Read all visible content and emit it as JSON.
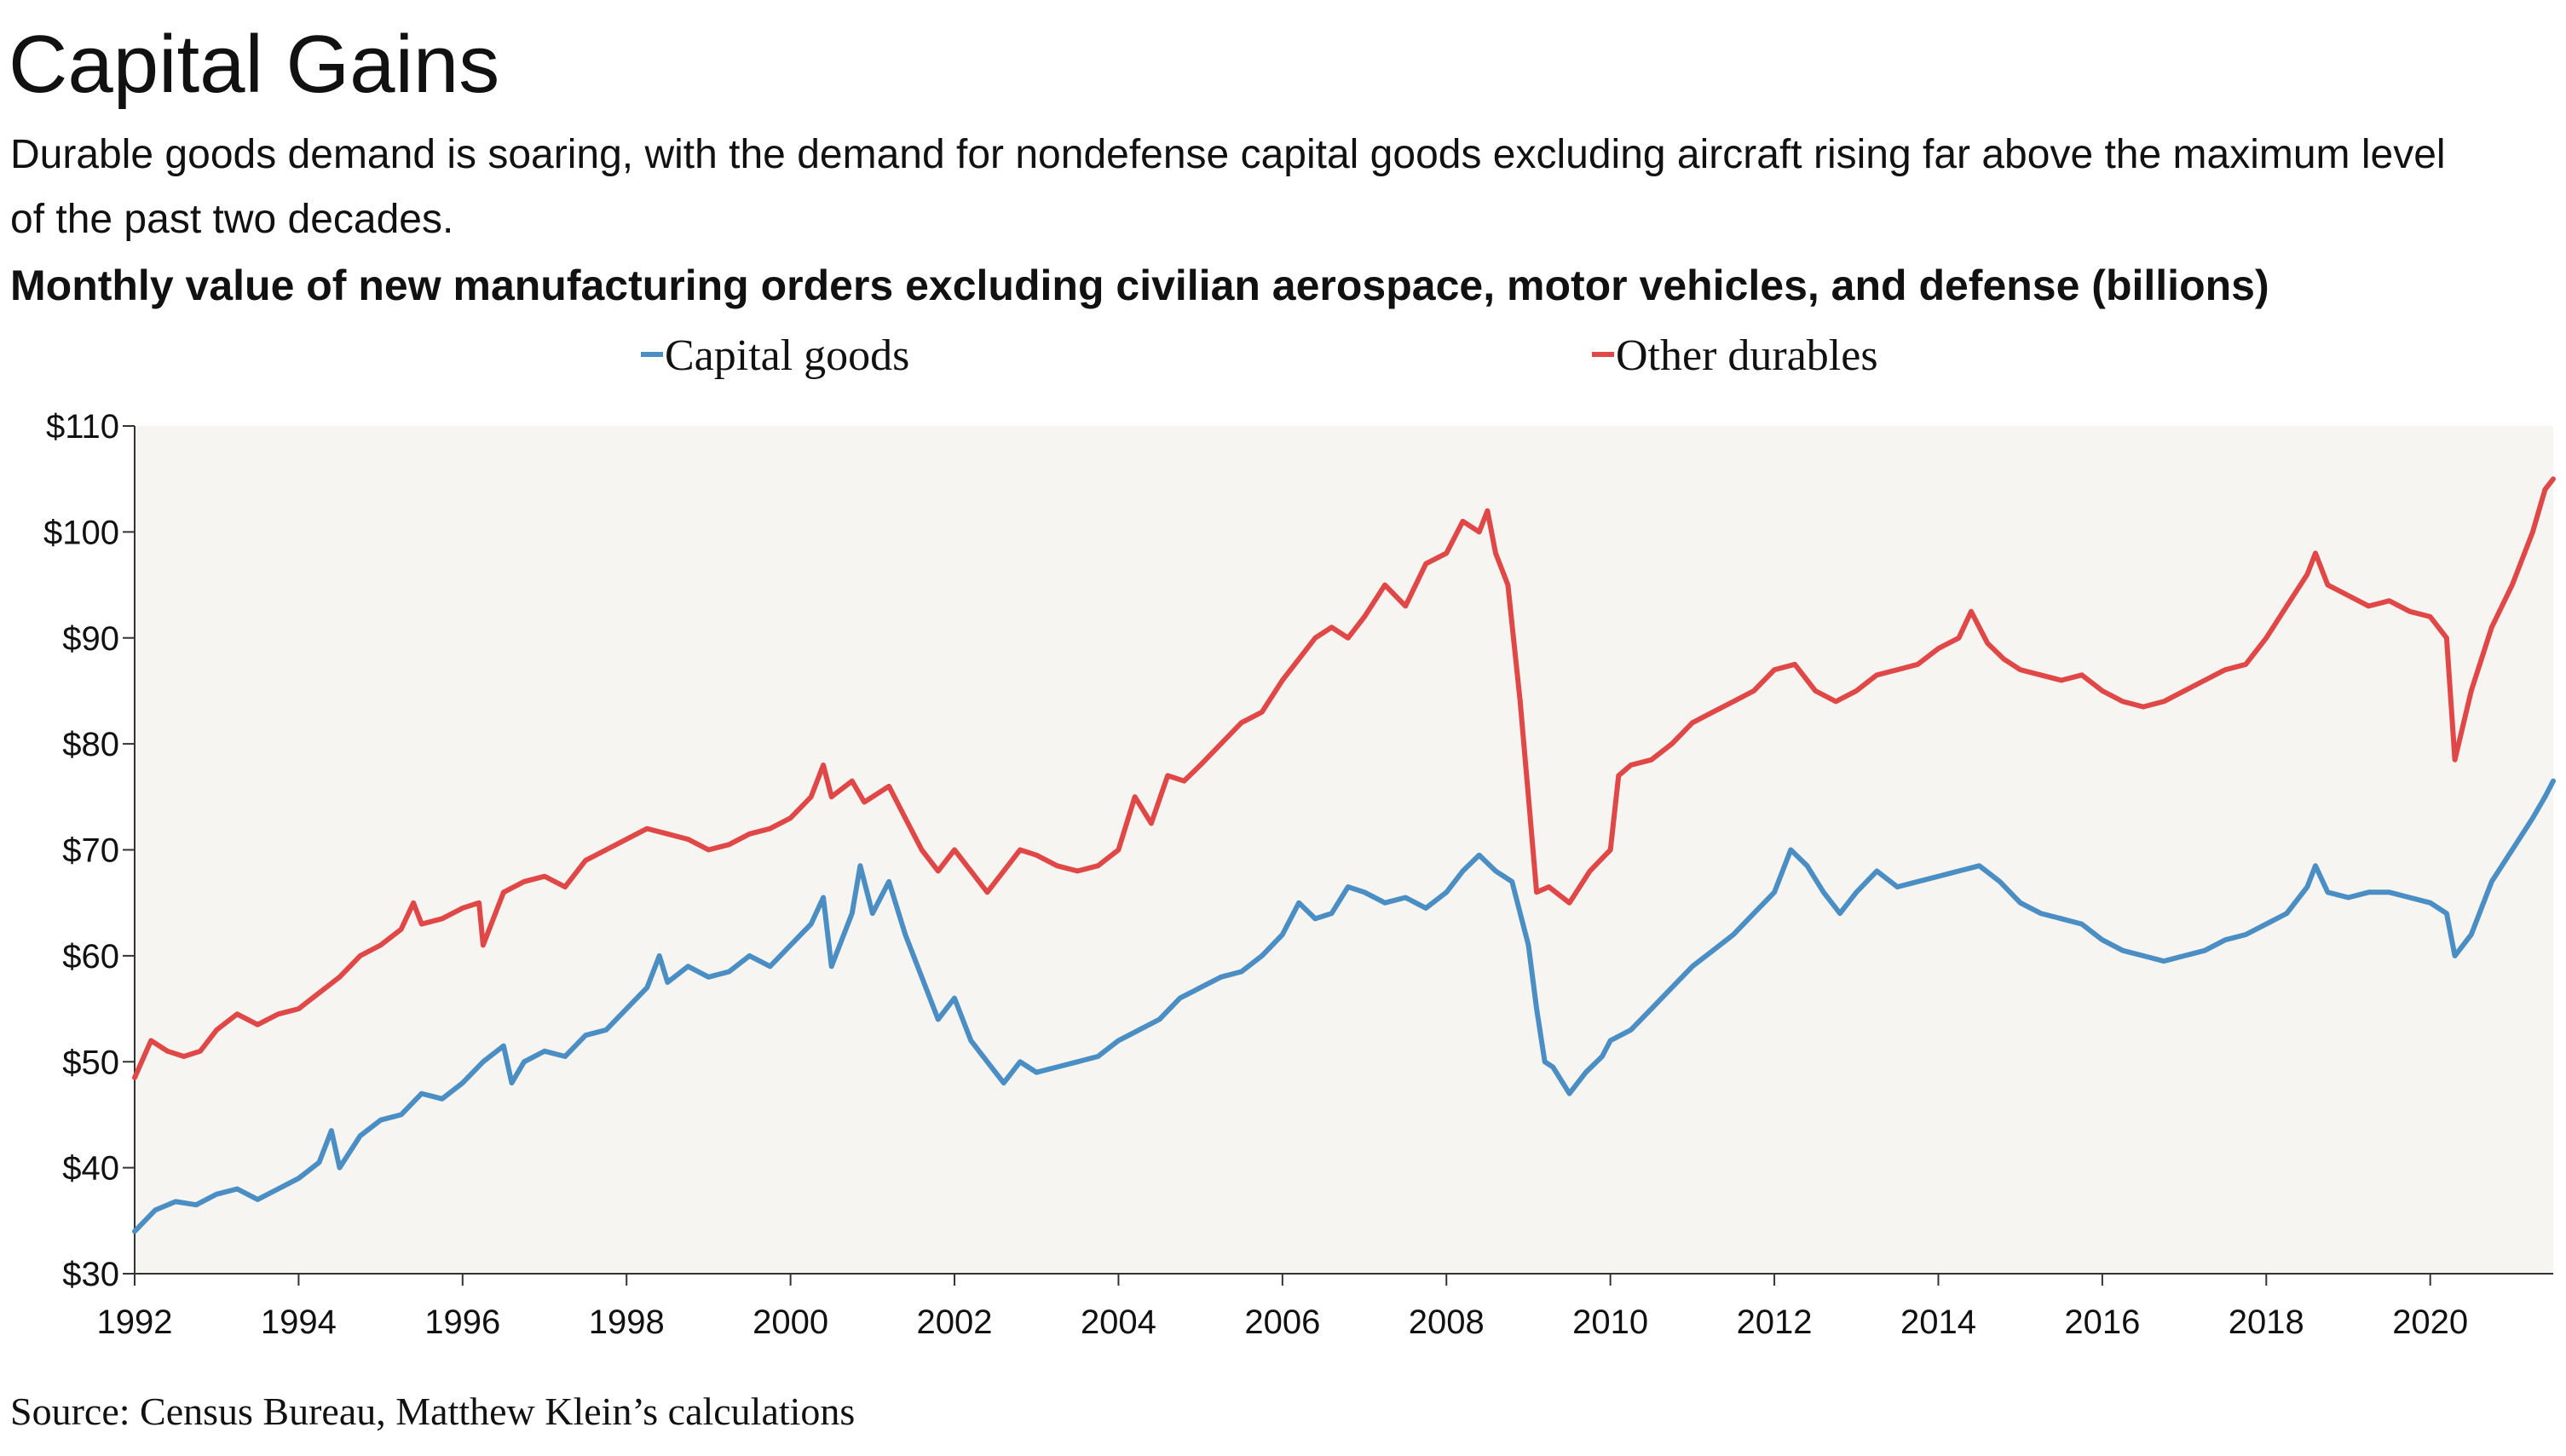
{
  "header": {
    "title": "Capital Gains",
    "subtitle": "Durable goods demand is soaring, with the demand for nondefense capital goods excluding aircraft rising far above the maximum level of the past two decades.",
    "chart_title": "Monthly value of new manufacturing orders excluding civilian aerospace, motor vehicles, and defense (billions)"
  },
  "source": "Source: Census Bureau, Matthew Klein’s calculations",
  "colors": {
    "capital": "#4a8ec4",
    "other": "#e04848",
    "plot_bg": "#f7f5f2"
  },
  "chart_data": {
    "type": "line",
    "title": "Monthly value of new manufacturing orders excluding civilian aerospace, motor vehicles, and defense (billions)",
    "xlim": [
      1992,
      2021.5
    ],
    "ylim": [
      30,
      110
    ],
    "yticks": [
      30,
      40,
      50,
      60,
      70,
      80,
      90,
      100,
      110
    ],
    "ytick_labels": [
      "$30",
      "$40",
      "$50",
      "$60",
      "$70",
      "$80",
      "$90",
      "$100",
      "$110"
    ],
    "xticks": [
      1992,
      1994,
      1996,
      1998,
      2000,
      2002,
      2004,
      2006,
      2008,
      2010,
      2012,
      2014,
      2016,
      2018,
      2020
    ],
    "xtick_labels": [
      "1992",
      "1994",
      "1996",
      "1998",
      "2000",
      "2002",
      "2004",
      "2006",
      "2008",
      "2010",
      "2012",
      "2014",
      "2016",
      "2018",
      "2020"
    ],
    "legend_position": "top-center",
    "grid": false,
    "series": [
      {
        "name": "Capital goods",
        "color": "#4a8ec4",
        "points": [
          [
            1992.0,
            34
          ],
          [
            1992.25,
            36
          ],
          [
            1992.5,
            36.8
          ],
          [
            1992.75,
            36.5
          ],
          [
            1993.0,
            37.5
          ],
          [
            1993.25,
            38
          ],
          [
            1993.5,
            37
          ],
          [
            1993.75,
            38
          ],
          [
            1994.0,
            39
          ],
          [
            1994.25,
            40.5
          ],
          [
            1994.4,
            43.5
          ],
          [
            1994.5,
            40
          ],
          [
            1994.75,
            43
          ],
          [
            1995.0,
            44.5
          ],
          [
            1995.25,
            45
          ],
          [
            1995.5,
            47
          ],
          [
            1995.75,
            46.5
          ],
          [
            1996.0,
            48
          ],
          [
            1996.25,
            50
          ],
          [
            1996.5,
            51.5
          ],
          [
            1996.6,
            48
          ],
          [
            1996.75,
            50
          ],
          [
            1997.0,
            51
          ],
          [
            1997.25,
            50.5
          ],
          [
            1997.5,
            52.5
          ],
          [
            1997.75,
            53
          ],
          [
            1998.0,
            55
          ],
          [
            1998.25,
            57
          ],
          [
            1998.4,
            60
          ],
          [
            1998.5,
            57.5
          ],
          [
            1998.75,
            59
          ],
          [
            1999.0,
            58
          ],
          [
            1999.25,
            58.5
          ],
          [
            1999.5,
            60
          ],
          [
            1999.75,
            59
          ],
          [
            2000.0,
            61
          ],
          [
            2000.25,
            63
          ],
          [
            2000.4,
            65.5
          ],
          [
            2000.5,
            59
          ],
          [
            2000.75,
            64
          ],
          [
            2000.85,
            68.5
          ],
          [
            2001.0,
            64
          ],
          [
            2001.2,
            67
          ],
          [
            2001.4,
            62
          ],
          [
            2001.6,
            58
          ],
          [
            2001.8,
            54
          ],
          [
            2002.0,
            56
          ],
          [
            2002.2,
            52
          ],
          [
            2002.4,
            50
          ],
          [
            2002.6,
            48
          ],
          [
            2002.8,
            50
          ],
          [
            2003.0,
            49
          ],
          [
            2003.25,
            49.5
          ],
          [
            2003.5,
            50
          ],
          [
            2003.75,
            50.5
          ],
          [
            2004.0,
            52
          ],
          [
            2004.25,
            53
          ],
          [
            2004.5,
            54
          ],
          [
            2004.75,
            56
          ],
          [
            2005.0,
            57
          ],
          [
            2005.25,
            58
          ],
          [
            2005.5,
            58.5
          ],
          [
            2005.75,
            60
          ],
          [
            2006.0,
            62
          ],
          [
            2006.2,
            65
          ],
          [
            2006.4,
            63.5
          ],
          [
            2006.6,
            64
          ],
          [
            2006.8,
            66.5
          ],
          [
            2007.0,
            66
          ],
          [
            2007.25,
            65
          ],
          [
            2007.5,
            65.5
          ],
          [
            2007.75,
            64.5
          ],
          [
            2008.0,
            66
          ],
          [
            2008.2,
            68
          ],
          [
            2008.4,
            69.5
          ],
          [
            2008.6,
            68
          ],
          [
            2008.8,
            67
          ],
          [
            2009.0,
            61
          ],
          [
            2009.1,
            55
          ],
          [
            2009.2,
            50
          ],
          [
            2009.3,
            49.5
          ],
          [
            2009.5,
            47
          ],
          [
            2009.7,
            49
          ],
          [
            2009.9,
            50.5
          ],
          [
            2010.0,
            52
          ],
          [
            2010.25,
            53
          ],
          [
            2010.5,
            55
          ],
          [
            2010.75,
            57
          ],
          [
            2011.0,
            59
          ],
          [
            2011.25,
            60.5
          ],
          [
            2011.5,
            62
          ],
          [
            2011.75,
            64
          ],
          [
            2012.0,
            66
          ],
          [
            2012.2,
            70
          ],
          [
            2012.4,
            68.5
          ],
          [
            2012.6,
            66
          ],
          [
            2012.8,
            64
          ],
          [
            2013.0,
            66
          ],
          [
            2013.25,
            68
          ],
          [
            2013.5,
            66.5
          ],
          [
            2013.75,
            67
          ],
          [
            2014.0,
            67.5
          ],
          [
            2014.25,
            68
          ],
          [
            2014.5,
            68.5
          ],
          [
            2014.75,
            67
          ],
          [
            2015.0,
            65
          ],
          [
            2015.25,
            64
          ],
          [
            2015.5,
            63.5
          ],
          [
            2015.75,
            63
          ],
          [
            2016.0,
            61.5
          ],
          [
            2016.25,
            60.5
          ],
          [
            2016.5,
            60
          ],
          [
            2016.75,
            59.5
          ],
          [
            2017.0,
            60
          ],
          [
            2017.25,
            60.5
          ],
          [
            2017.5,
            61.5
          ],
          [
            2017.75,
            62
          ],
          [
            2018.0,
            63
          ],
          [
            2018.25,
            64
          ],
          [
            2018.5,
            66.5
          ],
          [
            2018.6,
            68.5
          ],
          [
            2018.75,
            66
          ],
          [
            2019.0,
            65.5
          ],
          [
            2019.25,
            66
          ],
          [
            2019.5,
            66
          ],
          [
            2019.75,
            65.5
          ],
          [
            2020.0,
            65
          ],
          [
            2020.2,
            64
          ],
          [
            2020.3,
            60
          ],
          [
            2020.5,
            62
          ],
          [
            2020.75,
            67
          ],
          [
            2021.0,
            70
          ],
          [
            2021.25,
            73
          ],
          [
            2021.4,
            75
          ],
          [
            2021.5,
            76.5
          ]
        ]
      },
      {
        "name": "Other durables",
        "color": "#e04848",
        "points": [
          [
            1992.0,
            48.5
          ],
          [
            1992.2,
            52
          ],
          [
            1992.4,
            51
          ],
          [
            1992.6,
            50.5
          ],
          [
            1992.8,
            51
          ],
          [
            1993.0,
            53
          ],
          [
            1993.25,
            54.5
          ],
          [
            1993.5,
            53.5
          ],
          [
            1993.75,
            54.5
          ],
          [
            1994.0,
            55
          ],
          [
            1994.25,
            56.5
          ],
          [
            1994.5,
            58
          ],
          [
            1994.75,
            60
          ],
          [
            1995.0,
            61
          ],
          [
            1995.25,
            62.5
          ],
          [
            1995.4,
            65
          ],
          [
            1995.5,
            63
          ],
          [
            1995.75,
            63.5
          ],
          [
            1996.0,
            64.5
          ],
          [
            1996.2,
            65
          ],
          [
            1996.25,
            61
          ],
          [
            1996.5,
            66
          ],
          [
            1996.75,
            67
          ],
          [
            1997.0,
            67.5
          ],
          [
            1997.25,
            66.5
          ],
          [
            1997.5,
            69
          ],
          [
            1997.75,
            70
          ],
          [
            1998.0,
            71
          ],
          [
            1998.25,
            72
          ],
          [
            1998.5,
            71.5
          ],
          [
            1998.75,
            71
          ],
          [
            1999.0,
            70
          ],
          [
            1999.25,
            70.5
          ],
          [
            1999.5,
            71.5
          ],
          [
            1999.75,
            72
          ],
          [
            2000.0,
            73
          ],
          [
            2000.25,
            75
          ],
          [
            2000.4,
            78
          ],
          [
            2000.5,
            75
          ],
          [
            2000.75,
            76.5
          ],
          [
            2000.9,
            74.5
          ],
          [
            2001.0,
            75
          ],
          [
            2001.2,
            76
          ],
          [
            2001.4,
            73
          ],
          [
            2001.6,
            70
          ],
          [
            2001.8,
            68
          ],
          [
            2002.0,
            70
          ],
          [
            2002.2,
            68
          ],
          [
            2002.4,
            66
          ],
          [
            2002.6,
            68
          ],
          [
            2002.8,
            70
          ],
          [
            2003.0,
            69.5
          ],
          [
            2003.25,
            68.5
          ],
          [
            2003.5,
            68
          ],
          [
            2003.75,
            68.5
          ],
          [
            2004.0,
            70
          ],
          [
            2004.2,
            75
          ],
          [
            2004.4,
            72.5
          ],
          [
            2004.6,
            77
          ],
          [
            2004.8,
            76.5
          ],
          [
            2005.0,
            78
          ],
          [
            2005.25,
            80
          ],
          [
            2005.5,
            82
          ],
          [
            2005.75,
            83
          ],
          [
            2006.0,
            86
          ],
          [
            2006.2,
            88
          ],
          [
            2006.4,
            90
          ],
          [
            2006.6,
            91
          ],
          [
            2006.8,
            90
          ],
          [
            2007.0,
            92
          ],
          [
            2007.25,
            95
          ],
          [
            2007.5,
            93
          ],
          [
            2007.75,
            97
          ],
          [
            2008.0,
            98
          ],
          [
            2008.2,
            101
          ],
          [
            2008.4,
            100
          ],
          [
            2008.5,
            102
          ],
          [
            2008.6,
            98
          ],
          [
            2008.75,
            95
          ],
          [
            2008.9,
            84
          ],
          [
            2009.0,
            75
          ],
          [
            2009.1,
            66
          ],
          [
            2009.25,
            66.5
          ],
          [
            2009.5,
            65
          ],
          [
            2009.75,
            68
          ],
          [
            2010.0,
            70
          ],
          [
            2010.1,
            77
          ],
          [
            2010.25,
            78
          ],
          [
            2010.5,
            78.5
          ],
          [
            2010.75,
            80
          ],
          [
            2011.0,
            82
          ],
          [
            2011.25,
            83
          ],
          [
            2011.5,
            84
          ],
          [
            2011.75,
            85
          ],
          [
            2012.0,
            87
          ],
          [
            2012.25,
            87.5
          ],
          [
            2012.5,
            85
          ],
          [
            2012.75,
            84
          ],
          [
            2013.0,
            85
          ],
          [
            2013.25,
            86.5
          ],
          [
            2013.5,
            87
          ],
          [
            2013.75,
            87.5
          ],
          [
            2014.0,
            89
          ],
          [
            2014.25,
            90
          ],
          [
            2014.4,
            92.5
          ],
          [
            2014.6,
            89.5
          ],
          [
            2014.8,
            88
          ],
          [
            2015.0,
            87
          ],
          [
            2015.25,
            86.5
          ],
          [
            2015.5,
            86
          ],
          [
            2015.75,
            86.5
          ],
          [
            2016.0,
            85
          ],
          [
            2016.25,
            84
          ],
          [
            2016.5,
            83.5
          ],
          [
            2016.75,
            84
          ],
          [
            2017.0,
            85
          ],
          [
            2017.25,
            86
          ],
          [
            2017.5,
            87
          ],
          [
            2017.75,
            87.5
          ],
          [
            2018.0,
            90
          ],
          [
            2018.25,
            93
          ],
          [
            2018.5,
            96
          ],
          [
            2018.6,
            98
          ],
          [
            2018.75,
            95
          ],
          [
            2019.0,
            94
          ],
          [
            2019.25,
            93
          ],
          [
            2019.5,
            93.5
          ],
          [
            2019.75,
            92.5
          ],
          [
            2020.0,
            92
          ],
          [
            2020.2,
            90
          ],
          [
            2020.3,
            78.5
          ],
          [
            2020.5,
            85
          ],
          [
            2020.75,
            91
          ],
          [
            2021.0,
            95
          ],
          [
            2021.25,
            100
          ],
          [
            2021.4,
            104
          ],
          [
            2021.5,
            105
          ]
        ]
      }
    ]
  }
}
